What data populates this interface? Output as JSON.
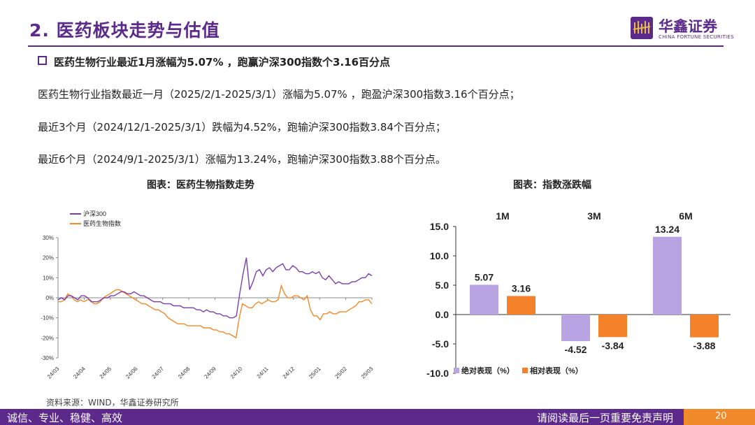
{
  "header": {
    "title": "2. 医药板块走势与估值",
    "logo_cn": "华鑫证券",
    "logo_en": "CHINA FORTUNE SECURITIES"
  },
  "headline": "医药生物行业最近1月涨幅为5.07% ，跑赢沪深300指数个3.16百分点",
  "paragraphs": [
    "医药生物行业指数最近一月（2025/2/1-2025/3/1）涨幅为5.07% ，跑盈沪深300指数3.16个百分点；",
    "最近3个月（2024/12/1-2025/3/1）跌幅为4.52%，跑输沪深300指数3.84个百分点；",
    "最近6个月（2024/9/1-2025/3/1）涨幅为13.24%，跑输沪深300指数3.88个百分点。"
  ],
  "captions": {
    "left": "图表：医药生物指数走势",
    "right": "图表：指数涨跌幅"
  },
  "source": "资料来源：WIND，华鑫证券研究所",
  "footer": {
    "left": "诚信、专业、稳健、高效",
    "right": "请阅读最后一页重要免责声明",
    "page": "20"
  },
  "colors": {
    "brand": "#5b2a8a",
    "accent": "#f08a2a",
    "hs300": "#7b3fa8",
    "pharma": "#f08a2a",
    "absolute": "#b9a3e3",
    "relative": "#f3822b"
  },
  "chart_data": [
    {
      "type": "line",
      "x_ticks": [
        "24/03",
        "24/04",
        "24/05",
        "24/06",
        "24/07",
        "24/08",
        "24/09",
        "24/10",
        "24/11",
        "24/12",
        "25/01",
        "25/02",
        "25/03"
      ],
      "y_ticks": [
        "30%",
        "20%",
        "10%",
        "0%",
        "-10%",
        "-20%",
        "-30%"
      ],
      "ylim": [
        -30,
        30
      ],
      "series": [
        {
          "name": "沪深300",
          "color": "#7b3fa8",
          "values": [
            -1,
            0,
            -1,
            1,
            1,
            0,
            -1,
            1,
            1,
            0,
            -2,
            -2,
            -2,
            -1,
            0,
            0,
            1,
            1,
            2,
            3,
            3,
            2,
            2,
            3,
            2,
            1,
            1,
            0,
            -1,
            -2,
            -2,
            -2,
            -3,
            -3,
            -3,
            -4,
            -4,
            -4,
            -5,
            -5,
            -5,
            -5,
            -6,
            -6,
            -7,
            -6,
            -7,
            -7,
            -8,
            -8,
            -9,
            -9,
            -10,
            -10,
            -9,
            2,
            12,
            20,
            4,
            8,
            13,
            14,
            11,
            14,
            15,
            13,
            15,
            16,
            17,
            14,
            14,
            16,
            15,
            13,
            13,
            12,
            12,
            13,
            12,
            13,
            10,
            9,
            11,
            9,
            7,
            8,
            7,
            7,
            7,
            8,
            8,
            9,
            10,
            10,
            12,
            11
          ]
        },
        {
          "name": "医药生物指数",
          "color": "#f08a2a",
          "values": [
            -2,
            -2,
            -1,
            2,
            1,
            -1,
            -2,
            -1,
            -2,
            -1,
            -1,
            -3,
            -3,
            -2,
            0,
            1,
            2,
            3,
            4,
            4,
            3,
            2,
            1,
            0,
            -1,
            -2,
            -3,
            -3,
            -4,
            -5,
            -6,
            -6,
            -7,
            -8,
            -10,
            -11,
            -12,
            -13,
            -13,
            -13,
            -14,
            -14,
            -14,
            -14,
            -14,
            -15,
            -15,
            -15,
            -16,
            -16,
            -17,
            -17,
            -18,
            -18,
            -19,
            -20,
            -10,
            -3,
            -4,
            -5,
            -5,
            -3,
            -2,
            -3,
            -2,
            -1,
            -2,
            -2,
            -1,
            6,
            2,
            0,
            0,
            1,
            1,
            0,
            -1,
            1,
            -6,
            -9,
            -9,
            -11,
            -8,
            -8,
            -7,
            -8,
            -8,
            -7,
            -7,
            -7,
            -6,
            -5,
            -4,
            -2,
            -2,
            -1,
            -1,
            -3
          ]
        }
      ]
    },
    {
      "type": "bar",
      "categories": [
        "1M",
        "3M",
        "6M"
      ],
      "ylim": [
        -10,
        15
      ],
      "y_ticks": [
        "15.0",
        "10.0",
        "5.0",
        "0.0",
        "-5.0",
        "-10.0"
      ],
      "series": [
        {
          "name": "绝对表现（%）",
          "color": "#b9a3e3",
          "values": [
            5.07,
            -4.52,
            13.24
          ]
        },
        {
          "name": "相对表现（%）",
          "color": "#f3822b",
          "values": [
            3.16,
            -3.84,
            -3.88
          ]
        }
      ]
    }
  ]
}
